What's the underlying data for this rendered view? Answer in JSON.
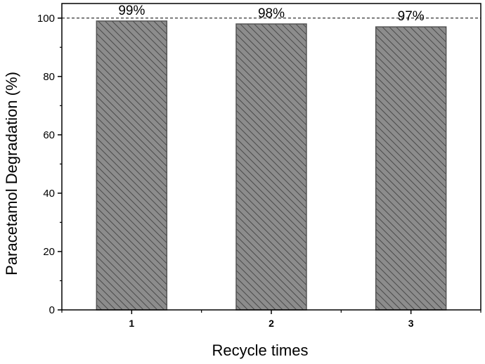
{
  "chart_data": {
    "type": "bar",
    "categories": [
      "1",
      "2",
      "3"
    ],
    "values": [
      99,
      98,
      97
    ],
    "data_labels": [
      "99%",
      "98%",
      "97%"
    ],
    "xlabel": "Recycle times",
    "ylabel": "Paracetamol Degradation (%)",
    "ylim": [
      0,
      105
    ],
    "yticks": [
      0,
      20,
      40,
      60,
      80,
      100
    ],
    "reference_line": 100,
    "grid": false,
    "bar_color": "#8c8c8c",
    "hatch_color": "#4a4a4a",
    "bar_edge_color": "#555555"
  }
}
